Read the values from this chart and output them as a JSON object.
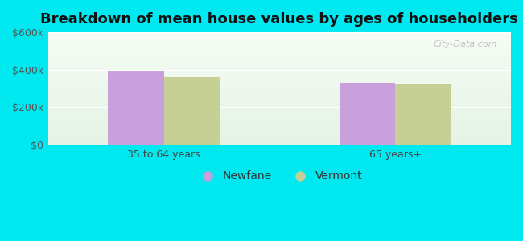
{
  "title": "Breakdown of mean house values by ages of householders",
  "categories": [
    "35 to 64 years",
    "65 years+"
  ],
  "newfane_values": [
    390000,
    330000
  ],
  "vermont_values": [
    360000,
    325000
  ],
  "ylim": [
    0,
    600000
  ],
  "yticks": [
    0,
    200000,
    400000,
    600000
  ],
  "ytick_labels": [
    "$0",
    "$200k",
    "$400k",
    "$600k"
  ],
  "bar_width": 0.12,
  "group_positions": [
    0.25,
    0.75
  ],
  "xlim": [
    0.0,
    1.0
  ],
  "newfane_color": "#c9a0dc",
  "vermont_color": "#c5cf96",
  "background_cyan": "#00e8f0",
  "title_fontsize": 13,
  "legend_labels": [
    "Newfane",
    "Vermont"
  ],
  "watermark": "City-Data.com"
}
